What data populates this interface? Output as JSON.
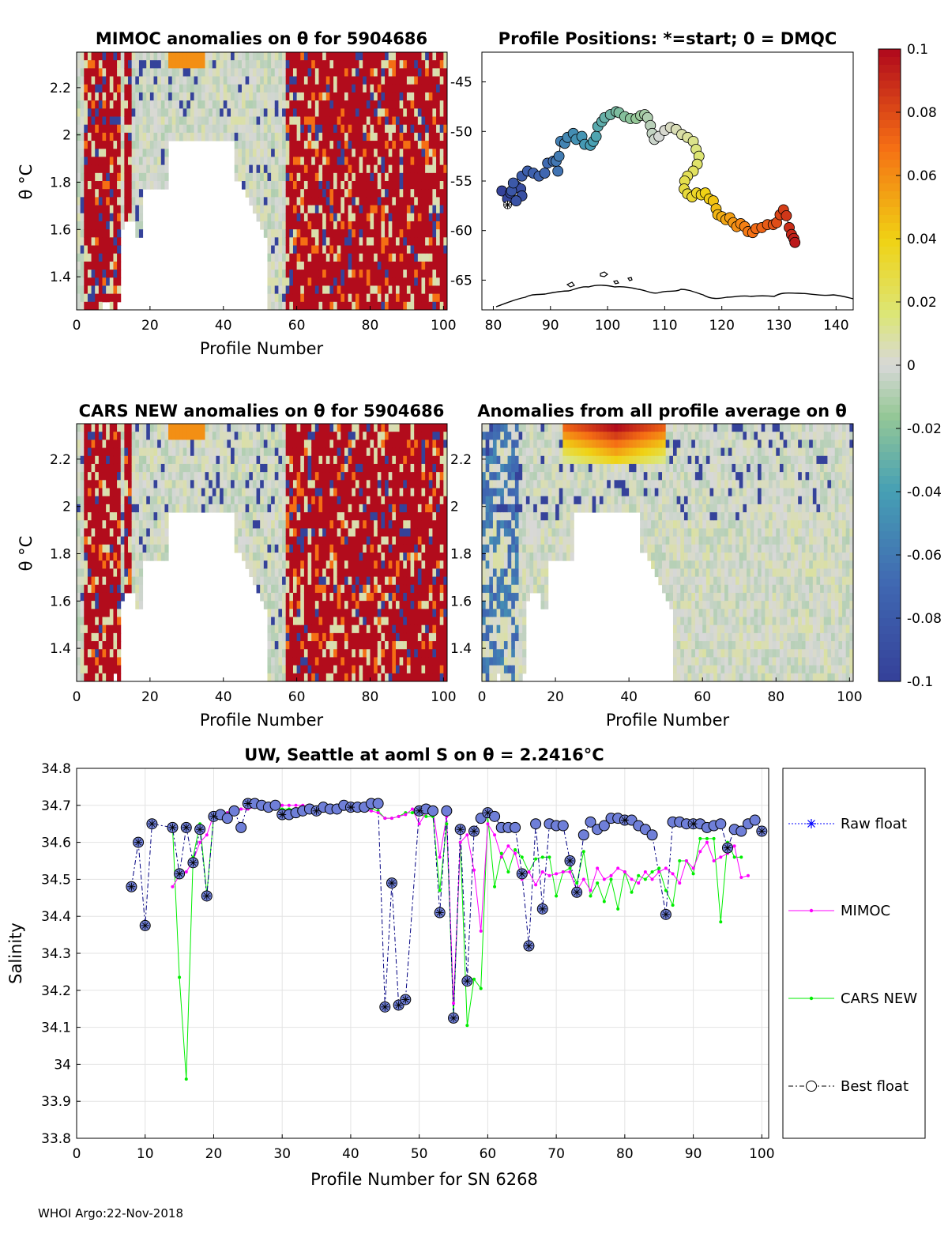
{
  "footer": "WHOI Argo:22-Nov-2018",
  "colorbar": {
    "ticks": [
      "0.1",
      "0.08",
      "0.06",
      "0.04",
      "0.02",
      "0",
      "-0.02",
      "-0.04",
      "-0.06",
      "-0.08",
      "-0.1"
    ],
    "range": [
      -0.1,
      0.1
    ]
  },
  "panels": {
    "mimoc": {
      "title": "MIMOC anomalies on θ  for 5904686",
      "xlabel": "Profile Number",
      "ylabel": "θ °C",
      "xticks": [
        "0",
        "20",
        "40",
        "60",
        "80",
        "100"
      ],
      "yticks": [
        "1.4",
        "1.6",
        "1.8",
        "2",
        "2.2"
      ]
    },
    "positions": {
      "title": "Profile Positions: *=start; 0 = DMQC",
      "xticks": [
        "80",
        "90",
        "100",
        "110",
        "120",
        "130",
        "140"
      ],
      "yticks": [
        "-45",
        "-50",
        "-55",
        "-60",
        "-65"
      ]
    },
    "cars": {
      "title": "CARS NEW anomalies on θ for 5904686",
      "xlabel": "Profile Number",
      "ylabel": "θ °C",
      "xticks": [
        "0",
        "20",
        "40",
        "60",
        "80",
        "100"
      ],
      "yticks": [
        "1.4",
        "1.6",
        "1.8",
        "2",
        "2.2"
      ]
    },
    "allavg": {
      "title": "Anomalies from all profile average on θ",
      "xlabel": "Profile Number",
      "xticks": [
        "0",
        "20",
        "40",
        "60",
        "80",
        "100"
      ],
      "yticks": [
        "1.4",
        "1.6",
        "1.8",
        "2",
        "2.2"
      ]
    }
  },
  "salinity": {
    "title": "UW, Seattle at aoml S on θ = 2.2416°C",
    "xlabel": "Profile Number for SN 6268",
    "ylabel": "Salinity",
    "xticks": [
      "0",
      "10",
      "20",
      "30",
      "40",
      "50",
      "60",
      "70",
      "80",
      "90",
      "100"
    ],
    "yticks": [
      "34.8",
      "34.7",
      "34.6",
      "34.5",
      "34.4",
      "34.3",
      "34.2",
      "34.1",
      "34",
      "33.9",
      "33.8"
    ],
    "legend": [
      "Raw float",
      "MIMOC",
      "CARS NEW",
      "Best float"
    ]
  },
  "chart_data": [
    {
      "type": "heatmap",
      "title": "MIMOC anomalies on θ  for 5904686",
      "xlabel": "Profile Number",
      "ylabel": "θ °C",
      "xlim": [
        0,
        101
      ],
      "ylim": [
        1.26,
        2.35
      ],
      "clim": [
        -0.1,
        0.1
      ]
    },
    {
      "type": "scatter",
      "title": "Profile Positions: *=start; 0 = DMQC",
      "xlim": [
        78,
        143
      ],
      "ylim": [
        -68,
        -42
      ],
      "track": [
        [
          81.5,
          -56
        ],
        [
          82.5,
          -56.8
        ],
        [
          83,
          -56.2
        ],
        [
          84,
          -55.5
        ],
        [
          84.8,
          -55.8
        ],
        [
          85,
          -56.5
        ],
        [
          84,
          -57
        ],
        [
          83.2,
          -56
        ],
        [
          83.5,
          -55.2
        ],
        [
          85,
          -54.5
        ],
        [
          86,
          -54
        ],
        [
          87,
          -54.2
        ],
        [
          88,
          -54.5
        ],
        [
          89,
          -54.2
        ],
        [
          89.5,
          -53.2
        ],
        [
          90.5,
          -53
        ],
        [
          91.3,
          -54
        ],
        [
          91,
          -53
        ],
        [
          91.5,
          -52.5
        ],
        [
          91.8,
          -51
        ],
        [
          92.5,
          -51.2
        ],
        [
          93,
          -50.6
        ],
        [
          94,
          -50.2
        ],
        [
          94.5,
          -50.8
        ],
        [
          95.5,
          -50.5
        ],
        [
          96,
          -51.3
        ],
        [
          97,
          -51.4
        ],
        [
          97.5,
          -51
        ],
        [
          98,
          -50.5
        ],
        [
          98.3,
          -49.5
        ],
        [
          99,
          -49
        ],
        [
          99.5,
          -48.6
        ],
        [
          100.5,
          -48.3
        ],
        [
          101.5,
          -48
        ],
        [
          102,
          -48.1
        ],
        [
          103,
          -48.5
        ],
        [
          104,
          -48.7
        ],
        [
          105,
          -48.7
        ],
        [
          105.8,
          -48.4
        ],
        [
          106.5,
          -48.3
        ],
        [
          107,
          -48.6
        ],
        [
          107.5,
          -49.4
        ],
        [
          107.8,
          -50.2
        ],
        [
          108.2,
          -50.8
        ],
        [
          109,
          -50.5
        ],
        [
          110,
          -49.9
        ],
        [
          111,
          -49.6
        ],
        [
          112,
          -49.8
        ],
        [
          113,
          -50.3
        ],
        [
          114,
          -50.6
        ],
        [
          115,
          -51
        ],
        [
          115.5,
          -51.8
        ],
        [
          116,
          -52.5
        ],
        [
          115.7,
          -53.3
        ],
        [
          115,
          -54
        ],
        [
          114,
          -54.5
        ],
        [
          113.5,
          -55
        ],
        [
          113.4,
          -55.8
        ],
        [
          114,
          -56.3
        ],
        [
          114.8,
          -56.6
        ],
        [
          115.6,
          -56.2
        ],
        [
          116.4,
          -56.4
        ],
        [
          117.1,
          -56.2
        ],
        [
          117.8,
          -56.8
        ],
        [
          118.5,
          -57
        ],
        [
          119,
          -57.8
        ],
        [
          119.3,
          -58.4
        ],
        [
          120,
          -58.6
        ],
        [
          120.7,
          -58.9
        ],
        [
          121.4,
          -58.7
        ],
        [
          122,
          -59.2
        ],
        [
          122.6,
          -59.6
        ],
        [
          123.3,
          -59.3
        ],
        [
          124,
          -59.6
        ],
        [
          124.6,
          -60.1
        ],
        [
          125.4,
          -60.2
        ],
        [
          126,
          -59.8
        ],
        [
          127,
          -59.7
        ],
        [
          128,
          -59.4
        ],
        [
          129,
          -59.4
        ],
        [
          129.6,
          -59.2
        ],
        [
          130.2,
          -58.4
        ],
        [
          130.8,
          -57.9
        ],
        [
          131.3,
          -58.5
        ],
        [
          131.8,
          -59.7
        ],
        [
          132.2,
          -60.4
        ],
        [
          132.6,
          -60.8
        ],
        [
          132.8,
          -61.2
        ]
      ],
      "start": [
        82.5,
        -57.4
      ]
    },
    {
      "type": "heatmap",
      "title": "CARS NEW anomalies on θ for 5904686",
      "xlabel": "Profile Number",
      "ylabel": "θ °C",
      "xlim": [
        0,
        101
      ],
      "ylim": [
        1.26,
        2.35
      ],
      "clim": [
        -0.1,
        0.1
      ]
    },
    {
      "type": "heatmap",
      "title": "Anomalies from all profile average on θ",
      "xlabel": "Profile Number",
      "xlim": [
        0,
        101
      ],
      "ylim": [
        1.26,
        2.35
      ],
      "clim": [
        -0.1,
        0.1
      ]
    },
    {
      "type": "line",
      "title": "UW, Seattle at aoml S on θ = 2.2416°C",
      "xlabel": "Profile Number for SN 6268",
      "ylabel": "Salinity",
      "xlim": [
        0,
        101
      ],
      "ylim": [
        33.8,
        34.8
      ],
      "series": [
        {
          "name": "Best float",
          "x": [
            8,
            9,
            10,
            11,
            14,
            15,
            16,
            17,
            18,
            19,
            20,
            21,
            22,
            23,
            24,
            25,
            26,
            27,
            28,
            29,
            30,
            31,
            32,
            33,
            34,
            35,
            36,
            37,
            38,
            39,
            40,
            41,
            42,
            43,
            44,
            45,
            46,
            47,
            48,
            50,
            51,
            52,
            53,
            54,
            55,
            56,
            57,
            58,
            59,
            60,
            61,
            62,
            63,
            64,
            65,
            66,
            67,
            68,
            69,
            70,
            71,
            72,
            73,
            74,
            75,
            76,
            77,
            78,
            79,
            80,
            81,
            82,
            83,
            84,
            86,
            87,
            88,
            89,
            90,
            91,
            92,
            93,
            94,
            95,
            96,
            97,
            98,
            99,
            100
          ],
          "values": [
            34.48,
            34.6,
            34.375,
            34.65,
            34.64,
            34.515,
            34.64,
            34.545,
            34.635,
            34.455,
            34.67,
            34.675,
            34.665,
            34.685,
            34.64,
            34.705,
            34.705,
            34.7,
            34.695,
            34.7,
            34.675,
            34.675,
            34.68,
            34.685,
            34.69,
            34.685,
            34.695,
            34.69,
            34.69,
            34.7,
            34.695,
            34.695,
            34.695,
            34.705,
            34.705,
            34.155,
            34.49,
            34.16,
            34.175,
            34.685,
            34.69,
            34.685,
            34.41,
            34.685,
            34.125,
            34.635,
            34.225,
            34.63,
            34.665,
            34.68,
            34.67,
            34.64,
            34.64,
            34.64,
            34.515,
            34.32,
            34.65,
            34.42,
            34.65,
            34.645,
            34.645,
            34.55,
            34.465,
            34.62,
            34.655,
            34.635,
            34.645,
            34.665,
            34.665,
            34.66,
            34.66,
            34.645,
            34.635,
            34.62,
            34.405,
            34.655,
            34.655,
            34.65,
            34.65,
            34.65,
            34.64,
            34.645,
            34.65,
            34.585,
            34.635,
            34.63,
            34.65,
            34.66,
            34.63
          ]
        },
        {
          "name": "MIMOC",
          "x": [
            14,
            15,
            16,
            17,
            18,
            19,
            20,
            21,
            22,
            23,
            24,
            25,
            26,
            27,
            28,
            29,
            30,
            31,
            32,
            33,
            34,
            35,
            36,
            37,
            38,
            39,
            40,
            41,
            42,
            43,
            44,
            45,
            46,
            47,
            48,
            49,
            50,
            51,
            52,
            53,
            54,
            55,
            56,
            57,
            58,
            59,
            60,
            61,
            62,
            63,
            64,
            65,
            66,
            67,
            68,
            69,
            70,
            71,
            72,
            73,
            74,
            75,
            76,
            77,
            78,
            79,
            80,
            81,
            82,
            83,
            84,
            85,
            86,
            87,
            88,
            89,
            90,
            91,
            92,
            93,
            94,
            95,
            96,
            97,
            98
          ],
          "values": [
            34.48,
            34.51,
            34.52,
            34.55,
            34.6,
            34.62,
            34.675,
            34.68,
            34.68,
            34.69,
            34.69,
            34.69,
            34.695,
            34.69,
            34.695,
            34.7,
            34.7,
            34.7,
            34.7,
            34.7,
            34.695,
            34.695,
            34.69,
            34.69,
            34.69,
            34.69,
            34.69,
            34.69,
            34.685,
            34.685,
            34.68,
            34.665,
            34.665,
            34.67,
            34.675,
            34.69,
            34.65,
            34.68,
            34.69,
            34.56,
            34.67,
            34.165,
            34.6,
            34.62,
            34.525,
            34.36,
            34.65,
            34.62,
            34.56,
            34.59,
            34.57,
            34.5,
            34.52,
            34.485,
            34.52,
            34.51,
            34.515,
            34.52,
            34.52,
            34.47,
            34.5,
            34.47,
            34.53,
            34.5,
            34.51,
            34.53,
            34.52,
            34.5,
            34.49,
            34.52,
            34.5,
            34.52,
            34.53,
            34.515,
            34.49,
            34.55,
            34.53,
            34.575,
            34.6,
            34.55,
            34.56,
            34.57,
            34.59,
            34.505,
            34.51
          ]
        },
        {
          "name": "CARS NEW",
          "x": [
            14,
            15,
            16,
            17,
            18,
            19,
            20,
            21,
            22,
            23,
            24,
            25,
            26,
            27,
            28,
            29,
            30,
            31,
            32,
            33,
            34,
            35,
            36,
            37,
            38,
            39,
            40,
            41,
            42,
            43,
            44,
            45,
            46,
            47,
            48,
            49,
            50,
            51,
            52,
            53,
            54,
            55,
            56,
            57,
            58,
            59,
            60,
            61,
            62,
            63,
            64,
            65,
            66,
            67,
            68,
            69,
            70,
            71,
            72,
            73,
            74,
            75,
            76,
            77,
            78,
            79,
            80,
            81,
            82,
            83,
            84,
            85,
            86,
            87,
            88,
            89,
            90,
            91,
            92,
            93,
            94,
            95,
            96,
            97
          ],
          "values": [
            34.64,
            34.235,
            33.96,
            34.56,
            34.65,
            34.46,
            34.67,
            34.685,
            34.68,
            34.69,
            34.69,
            34.69,
            34.695,
            34.69,
            34.695,
            34.69,
            34.69,
            34.69,
            34.69,
            34.69,
            34.69,
            34.69,
            34.69,
            34.69,
            34.69,
            34.69,
            34.69,
            34.69,
            34.69,
            34.69,
            34.685,
            34.665,
            34.665,
            34.67,
            34.68,
            34.68,
            34.675,
            34.67,
            34.67,
            34.47,
            34.65,
            34.13,
            34.6,
            34.105,
            34.23,
            34.205,
            34.67,
            34.48,
            34.57,
            34.52,
            34.58,
            34.56,
            34.52,
            34.555,
            34.56,
            34.56,
            34.455,
            34.52,
            34.53,
            34.49,
            34.575,
            34.455,
            34.49,
            34.44,
            34.5,
            34.42,
            34.52,
            34.465,
            34.51,
            34.5,
            34.52,
            34.53,
            34.47,
            34.43,
            34.55,
            34.55,
            34.515,
            34.61,
            34.61,
            34.61,
            34.385,
            34.6,
            34.56,
            34.56
          ]
        },
        {
          "name": "Raw float",
          "x": [
            8,
            9,
            10,
            11,
            14,
            15,
            16,
            17,
            18,
            19,
            20,
            25,
            30,
            35,
            40,
            45,
            46,
            47,
            48,
            50,
            53,
            55,
            56,
            57,
            58,
            60,
            65,
            66,
            68,
            72,
            73,
            80,
            86,
            90,
            95,
            100
          ],
          "values": [
            34.48,
            34.6,
            34.375,
            34.65,
            34.64,
            34.515,
            34.64,
            34.545,
            34.635,
            34.455,
            34.67,
            34.705,
            34.675,
            34.685,
            34.695,
            34.155,
            34.49,
            34.16,
            34.175,
            34.685,
            34.41,
            34.125,
            34.635,
            34.225,
            34.63,
            34.68,
            34.515,
            34.32,
            34.42,
            34.55,
            34.465,
            34.66,
            34.405,
            34.65,
            34.585,
            34.63
          ]
        }
      ]
    }
  ]
}
